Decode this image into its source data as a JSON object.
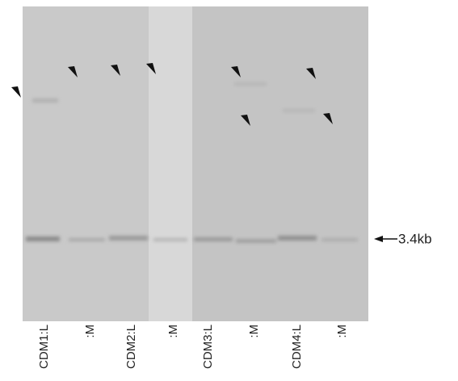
{
  "lanes": [
    {
      "label": "CDM1:L"
    },
    {
      "label": ":M"
    },
    {
      "label": "CDM2:L"
    },
    {
      "label": ":M"
    },
    {
      "label": "CDM3:L"
    },
    {
      "label": ":M"
    },
    {
      "label": "CDM4:L"
    },
    {
      "label": ":M"
    }
  ],
  "marker": {
    "label": "3.4kb"
  }
}
